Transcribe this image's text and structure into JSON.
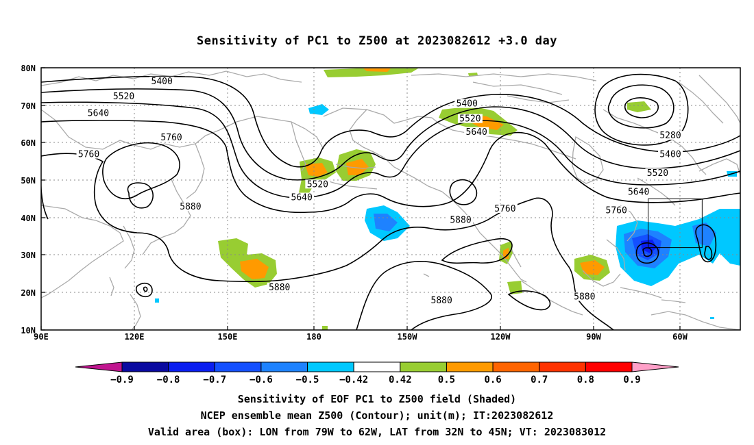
{
  "title": "Sensitivity of PC1 to Z500 at 2023082612 +3.0 day",
  "map": {
    "lon_labels": [
      "90E",
      "120E",
      "150E",
      "180",
      "150W",
      "120W",
      "90W",
      "60W"
    ],
    "lat_labels": [
      "80N",
      "70N",
      "60N",
      "50N",
      "40N",
      "30N",
      "20N",
      "10N"
    ],
    "contour_labels": [
      {
        "text": "5400",
        "lon": 128,
        "lat": 76
      },
      {
        "text": "5520",
        "lon": 116,
        "lat": 72
      },
      {
        "text": "5640",
        "lon": 108,
        "lat": 67.5
      },
      {
        "text": "5760",
        "lon": 131,
        "lat": 61
      },
      {
        "text": "5760",
        "lon": 105,
        "lat": 56.5
      },
      {
        "text": "5880",
        "lon": 137,
        "lat": 42.5
      },
      {
        "text": "5880",
        "lon": 165,
        "lat": 21
      },
      {
        "text": "5520",
        "lon": 177,
        "lat": 48.5
      },
      {
        "text": "5640",
        "lon": 172,
        "lat": 45
      },
      {
        "text": "5400",
        "lon": -136,
        "lat": 70
      },
      {
        "text": "5520",
        "lon": -135,
        "lat": 66
      },
      {
        "text": "5640",
        "lon": -133,
        "lat": 62.5
      },
      {
        "text": "5760",
        "lon": -124,
        "lat": 42
      },
      {
        "text": "5880",
        "lon": -138,
        "lat": 39
      },
      {
        "text": "5880",
        "lon": -144,
        "lat": 17.5
      },
      {
        "text": "5880",
        "lon": -99,
        "lat": 18.5
      },
      {
        "text": "5280",
        "lon": -72,
        "lat": 61.5
      },
      {
        "text": "5400",
        "lon": -72,
        "lat": 56.5
      },
      {
        "text": "5520",
        "lon": -76,
        "lat": 51.5
      },
      {
        "text": "5640",
        "lon": -82,
        "lat": 46.5
      },
      {
        "text": "5760",
        "lon": -89,
        "lat": 41.5
      }
    ],
    "valid_box": {
      "lon_from": -79,
      "lon_to": -62,
      "lat_from": 32,
      "lat_to": 45
    }
  },
  "colorbar": {
    "colors": [
      "#c0158f",
      "#0a0aa0",
      "#0a1ef0",
      "#1450ff",
      "#1e82ff",
      "#00c8ff",
      "#ffffff",
      "#98cd32",
      "#ff9a00",
      "#ff6400",
      "#ff3200",
      "#ff0000",
      "#ffa0c8"
    ],
    "labels": [
      "-0.9",
      "-0.8",
      "-0.7",
      "-0.6",
      "-0.5",
      "-0.42",
      "0.42",
      "0.5",
      "0.6",
      "0.7",
      "0.8",
      "0.9"
    ]
  },
  "caption": {
    "line1": "Sensitivity of EOF PC1 to Z500 field (Shaded)",
    "line2": "NCEP ensemble mean Z500 (Contour); unit(m); IT:2023082612",
    "line3": "Valid area (box): LON from 79W to 62W, LAT from 32N to 45N; VT: 2023083012"
  }
}
